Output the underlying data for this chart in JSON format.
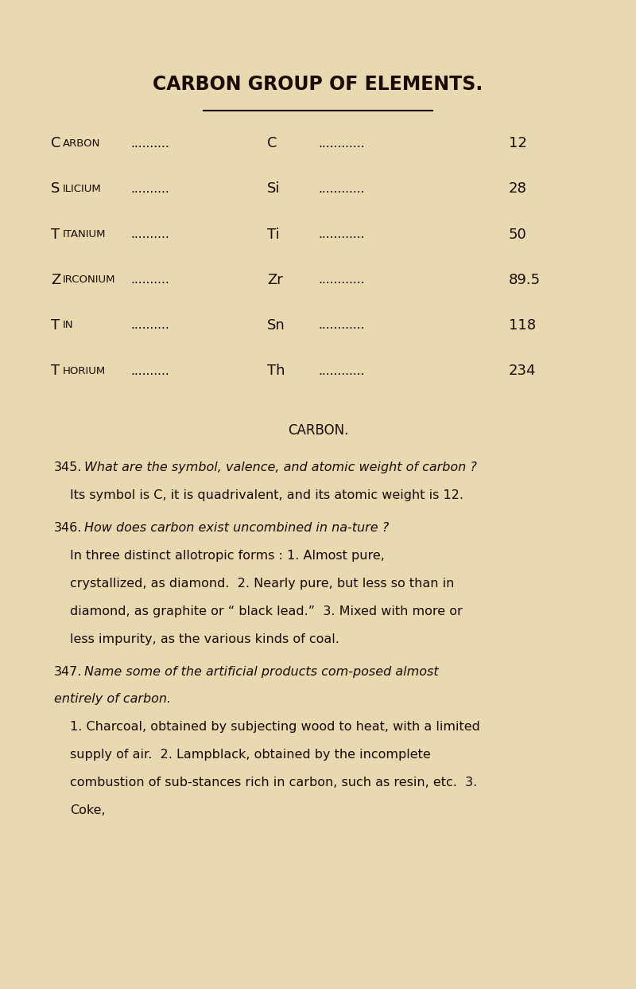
{
  "background_color": "#e8d9b0",
  "text_color": "#1a0a00",
  "page_width": 8.0,
  "page_height": 12.43,
  "title": "CARBON GROUP OF ELEMENTS.",
  "elements": [
    {
      "name": "Carbon",
      "symbol": "C",
      "weight": "12"
    },
    {
      "name": "Silicium",
      "symbol": "Si",
      "weight": "28"
    },
    {
      "name": "Titanium",
      "symbol": "Ti",
      "weight": "50"
    },
    {
      "name": "Zirconium",
      "symbol": "Zr",
      "weight": "89.5"
    },
    {
      "name": "Tin",
      "symbol": "Sn",
      "weight": "118"
    },
    {
      "name": "Thorium",
      "symbol": "Th",
      "weight": "234"
    }
  ],
  "section_title": "carbon.",
  "paragraphs": [
    {
      "number": "345.",
      "question": "What are the symbol, valence, and atomic weight of carbon ?",
      "answer": "Its symbol is C, it is quadrivalent, and its atomic weight is 12."
    },
    {
      "number": "346.",
      "question": "How does carbon exist uncombined in na-ture ?",
      "answer": "In three distinct allotropic forms : 1. Almost pure, crystallized, as diamond.  2. Nearly pure, but less so than in diamond, as graphite or “ black lead.”  3. Mixed with more or less impurity, as the various kinds of coal."
    },
    {
      "number": "347.",
      "question": "Name some of the artificial products com-posed almost entirely of carbon.",
      "answer": "1. Charcoal, obtained by subjecting wood to heat, with a limited supply of air.  2. Lampblack, obtained by the incomplete combustion of sub-stances rich in carbon, such as resin, etc.  3. Coke,"
    }
  ]
}
